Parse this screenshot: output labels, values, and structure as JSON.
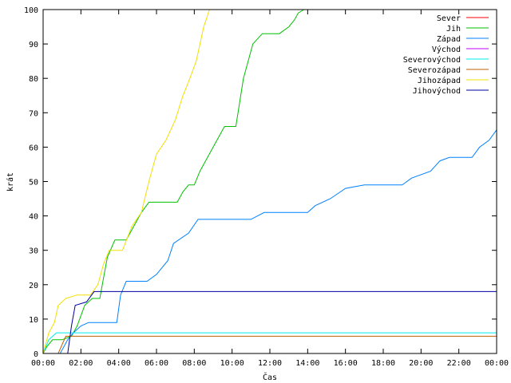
{
  "chart_data": {
    "type": "line",
    "title": "",
    "xlabel": "Čas",
    "ylabel": "krát",
    "xlim": [
      0,
      24
    ],
    "ylim": [
      0,
      100
    ],
    "x_ticks": [
      0,
      2,
      4,
      6,
      8,
      10,
      12,
      14,
      16,
      18,
      20,
      22,
      24
    ],
    "x_tick_labels": [
      "00:00",
      "02:00",
      "04:00",
      "06:00",
      "08:00",
      "10:00",
      "12:00",
      "14:00",
      "16:00",
      "18:00",
      "20:00",
      "22:00",
      "00:00"
    ],
    "y_ticks": [
      0,
      10,
      20,
      30,
      40,
      50,
      60,
      70,
      80,
      90,
      100
    ],
    "y_tick_labels": [
      "0",
      "10",
      "20",
      "30",
      "40",
      "50",
      "60",
      "70",
      "80",
      "90",
      "100"
    ],
    "grid": false,
    "legend_position": "top-right",
    "series": [
      {
        "name": "Sever",
        "color": "#ff0000",
        "points": []
      },
      {
        "name": "Jih",
        "color": "#00c000",
        "points": [
          [
            0.0,
            0
          ],
          [
            0.2,
            2
          ],
          [
            0.5,
            4
          ],
          [
            1.0,
            4
          ],
          [
            1.5,
            5
          ],
          [
            1.8,
            8
          ],
          [
            2.2,
            14
          ],
          [
            2.6,
            16
          ],
          [
            3.0,
            16
          ],
          [
            3.2,
            22
          ],
          [
            3.4,
            28
          ],
          [
            3.8,
            33
          ],
          [
            4.4,
            33
          ],
          [
            4.8,
            37
          ],
          [
            5.2,
            41
          ],
          [
            5.6,
            44
          ],
          [
            6.3,
            44
          ],
          [
            7.1,
            44
          ],
          [
            7.4,
            47
          ],
          [
            7.7,
            49
          ],
          [
            8.0,
            49
          ],
          [
            8.3,
            53
          ],
          [
            8.7,
            57
          ],
          [
            9.2,
            62
          ],
          [
            9.6,
            66
          ],
          [
            10.2,
            66
          ],
          [
            10.6,
            80
          ],
          [
            11.1,
            90
          ],
          [
            11.6,
            93
          ],
          [
            12.5,
            93
          ],
          [
            13.0,
            95
          ],
          [
            13.3,
            97
          ],
          [
            13.5,
            99
          ],
          [
            13.8,
            100
          ]
        ]
      },
      {
        "name": "Západ",
        "color": "#0080ff",
        "points": [
          [
            0.0,
            0
          ],
          [
            0.9,
            0
          ],
          [
            1.3,
            4
          ],
          [
            1.6,
            6
          ],
          [
            2.0,
            8
          ],
          [
            2.4,
            9
          ],
          [
            3.2,
            9
          ],
          [
            3.9,
            9
          ],
          [
            4.1,
            17
          ],
          [
            4.4,
            21
          ],
          [
            5.5,
            21
          ],
          [
            6.0,
            23
          ],
          [
            6.6,
            27
          ],
          [
            6.9,
            32
          ],
          [
            7.7,
            35
          ],
          [
            8.2,
            39
          ],
          [
            11.0,
            39
          ],
          [
            11.7,
            41
          ],
          [
            14.0,
            41
          ],
          [
            14.4,
            43
          ],
          [
            15.2,
            45
          ],
          [
            16.0,
            48
          ],
          [
            17.0,
            49
          ],
          [
            19.0,
            49
          ],
          [
            19.5,
            51
          ],
          [
            20.5,
            53
          ],
          [
            21.0,
            56
          ],
          [
            21.5,
            57
          ],
          [
            22.7,
            57
          ],
          [
            23.1,
            60
          ],
          [
            23.6,
            62
          ],
          [
            24.0,
            65
          ]
        ]
      },
      {
        "name": "Východ",
        "color": "#c000ff",
        "points": []
      },
      {
        "name": "Severovýchod",
        "color": "#00eeee",
        "points": [
          [
            0.0,
            0
          ],
          [
            0.3,
            4
          ],
          [
            0.7,
            6
          ],
          [
            1.2,
            6
          ],
          [
            1.8,
            6
          ],
          [
            24.0,
            6
          ]
        ]
      },
      {
        "name": "Severozápad",
        "color": "#c06000",
        "points": [
          [
            0.0,
            0
          ],
          [
            0.8,
            0
          ],
          [
            1.2,
            5
          ],
          [
            24.0,
            5
          ]
        ]
      },
      {
        "name": "Jihozápad",
        "color": "#f0e000",
        "points": [
          [
            0.0,
            0
          ],
          [
            0.3,
            6
          ],
          [
            0.6,
            9
          ],
          [
            0.8,
            14
          ],
          [
            1.2,
            16
          ],
          [
            1.8,
            17
          ],
          [
            2.5,
            17
          ],
          [
            2.9,
            20
          ],
          [
            3.2,
            26
          ],
          [
            3.5,
            30
          ],
          [
            4.2,
            30
          ],
          [
            4.7,
            37
          ],
          [
            5.2,
            41
          ],
          [
            5.6,
            50
          ],
          [
            6.0,
            58
          ],
          [
            6.5,
            62
          ],
          [
            7.0,
            68
          ],
          [
            7.4,
            75
          ],
          [
            7.7,
            79
          ],
          [
            8.1,
            85
          ],
          [
            8.5,
            95
          ],
          [
            8.8,
            100
          ]
        ]
      },
      {
        "name": "Jihovýchod",
        "color": "#0000a0",
        "points": [
          [
            0.0,
            0
          ],
          [
            1.3,
            0
          ],
          [
            1.5,
            8
          ],
          [
            1.7,
            14
          ],
          [
            2.3,
            15
          ],
          [
            2.7,
            18
          ],
          [
            24.0,
            18
          ]
        ]
      }
    ]
  }
}
